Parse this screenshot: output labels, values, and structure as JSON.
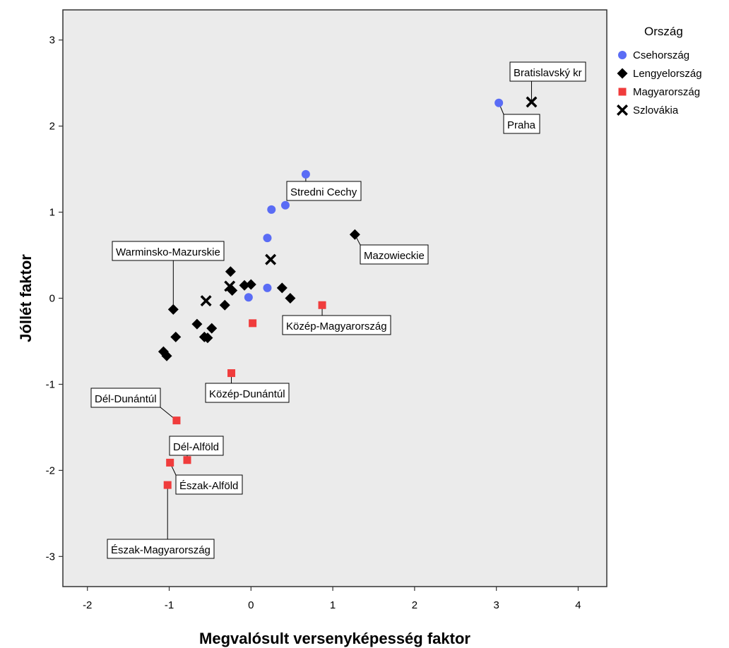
{
  "chart_data": {
    "type": "scatter",
    "xlabel": "Megvalósult versenyképesség faktor",
    "ylabel": "Jóllét faktor",
    "xlim": [
      -2.3,
      4.35
    ],
    "ylim": [
      -3.35,
      3.35
    ],
    "xticks": [
      -2,
      -1,
      0,
      1,
      2,
      3,
      4
    ],
    "yticks": [
      -3,
      -2,
      -1,
      0,
      1,
      2,
      3
    ],
    "grid": false,
    "background": "#ebebeb",
    "legend": {
      "title": "Ország",
      "placement": "right",
      "entries": [
        "Csehország",
        "Lengyelország",
        "Magyarország",
        "Szlovákia"
      ]
    },
    "series": [
      {
        "name": "Csehország",
        "marker": "circle",
        "color": "#5a6cf5",
        "points": [
          {
            "x": 3.03,
            "y": 2.27
          },
          {
            "x": 0.67,
            "y": 1.44
          },
          {
            "x": 0.42,
            "y": 1.08
          },
          {
            "x": 0.25,
            "y": 1.03
          },
          {
            "x": 0.2,
            "y": 0.7
          },
          {
            "x": 0.2,
            "y": 0.12
          },
          {
            "x": -0.03,
            "y": 0.01
          }
        ]
      },
      {
        "name": "Lengyelország",
        "marker": "diamond",
        "color": "#000000",
        "points": [
          {
            "x": 1.27,
            "y": 0.74
          },
          {
            "x": -0.25,
            "y": 0.31
          },
          {
            "x": -0.23,
            "y": 0.09
          },
          {
            "x": -0.08,
            "y": 0.15
          },
          {
            "x": 0.0,
            "y": 0.16
          },
          {
            "x": 0.38,
            "y": 0.12
          },
          {
            "x": 0.48,
            "y": 0.0
          },
          {
            "x": -0.32,
            "y": -0.08
          },
          {
            "x": -0.95,
            "y": -0.13
          },
          {
            "x": -0.66,
            "y": -0.3
          },
          {
            "x": -0.48,
            "y": -0.35
          },
          {
            "x": -0.53,
            "y": -0.46
          },
          {
            "x": -0.57,
            "y": -0.45
          },
          {
            "x": -0.92,
            "y": -0.45
          },
          {
            "x": -1.07,
            "y": -0.62
          },
          {
            "x": -1.03,
            "y": -0.67
          }
        ]
      },
      {
        "name": "Magyarország",
        "marker": "square",
        "color": "#f03c3c",
        "points": [
          {
            "x": 0.87,
            "y": -0.08
          },
          {
            "x": 0.02,
            "y": -0.29
          },
          {
            "x": -0.24,
            "y": -0.87
          },
          {
            "x": -0.91,
            "y": -1.42
          },
          {
            "x": -0.78,
            "y": -1.88
          },
          {
            "x": -0.99,
            "y": -1.91
          },
          {
            "x": -1.02,
            "y": -2.17
          }
        ]
      },
      {
        "name": "Szlovákia",
        "marker": "cross",
        "color": "#000000",
        "points": [
          {
            "x": 3.43,
            "y": 2.28
          },
          {
            "x": 0.24,
            "y": 0.45
          },
          {
            "x": -0.26,
            "y": 0.14
          },
          {
            "x": -0.55,
            "y": -0.03
          }
        ]
      }
    ],
    "annotations": [
      {
        "text": "Bratislavský kr",
        "x": 3.43,
        "y": 2.28
      },
      {
        "text": "Praha",
        "x": 3.03,
        "y": 2.27
      },
      {
        "text": "Stredni Cechy",
        "x": 0.67,
        "y": 1.44
      },
      {
        "text": "Mazowieckie",
        "x": 1.27,
        "y": 0.74
      },
      {
        "text": "Warminsko-Mazurskie",
        "x": -0.95,
        "y": -0.13
      },
      {
        "text": "Közép-Magyarország",
        "x": 0.87,
        "y": -0.08
      },
      {
        "text": "Közép-Dunántúl",
        "x": -0.24,
        "y": -0.87
      },
      {
        "text": "Dél-Dunántúl",
        "x": -0.91,
        "y": -1.42
      },
      {
        "text": "Dél-Alföld",
        "x": -0.78,
        "y": -1.88
      },
      {
        "text": "Észak-Alföld",
        "x": -0.99,
        "y": -1.91
      },
      {
        "text": "Észak-Magyarország",
        "x": -1.02,
        "y": -2.17
      }
    ]
  }
}
